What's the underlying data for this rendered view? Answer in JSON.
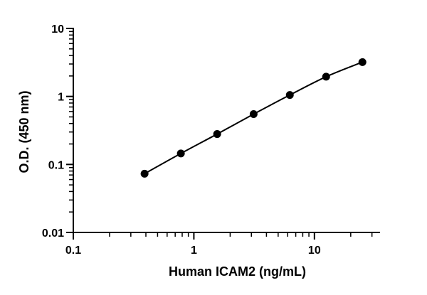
{
  "chart_data": {
    "type": "scatter",
    "title": "",
    "xlabel": "Human ICAM2 (ng/mL)",
    "ylabel": "O.D. (450 nm)",
    "x_scale": "log",
    "y_scale": "log",
    "xlim": [
      0.1,
      35
    ],
    "ylim": [
      0.01,
      10
    ],
    "x_ticks": [
      {
        "value": 0.1,
        "label": "0.1"
      },
      {
        "value": 1,
        "label": "1"
      },
      {
        "value": 10,
        "label": "10"
      }
    ],
    "y_ticks": [
      {
        "value": 0.01,
        "label": "0.01"
      },
      {
        "value": 0.1,
        "label": "0.1"
      },
      {
        "value": 1,
        "label": "1"
      },
      {
        "value": 10,
        "label": "10"
      }
    ],
    "grid": false,
    "legend": "none",
    "series": [
      {
        "x": [
          0.39,
          0.78,
          1.56,
          3.13,
          6.25,
          12.5,
          25
        ],
        "y": [
          0.073,
          0.145,
          0.28,
          0.55,
          1.05,
          1.95,
          3.2
        ],
        "color": "#000000",
        "marker": "circle",
        "fit_line": true
      }
    ]
  }
}
